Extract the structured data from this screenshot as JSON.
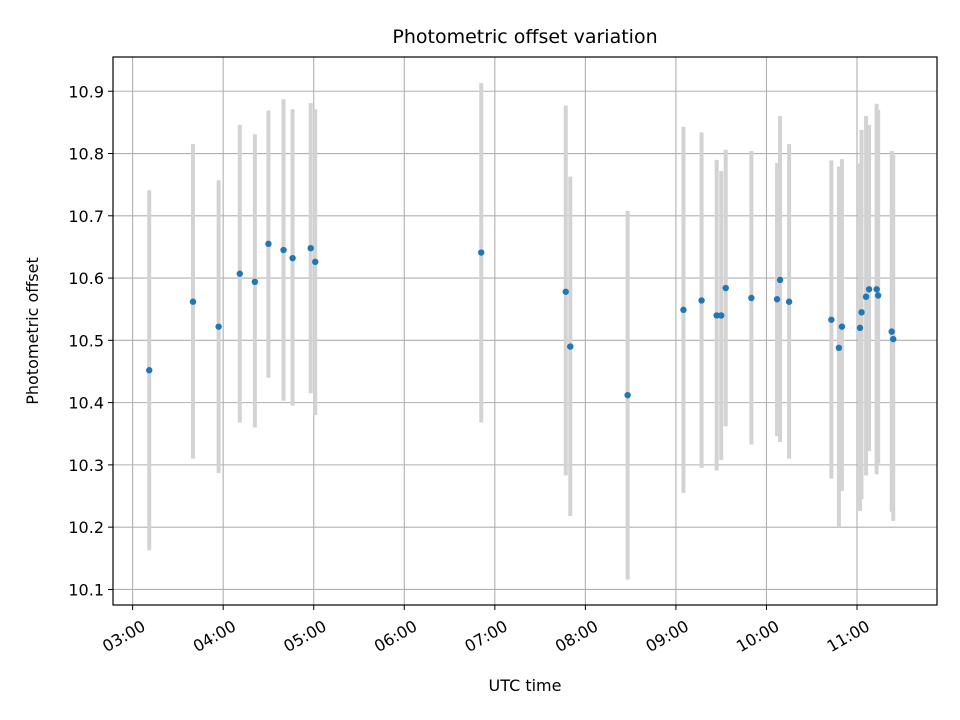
{
  "chart_data": {
    "type": "scatter",
    "title": "Photometric offset variation",
    "xlabel": "UTC time",
    "ylabel": "Photometric offset",
    "xlim": [
      "02:47",
      "11:53"
    ],
    "ylim": [
      10.075,
      10.955
    ],
    "x_ticks": [
      "03:00",
      "04:00",
      "05:00",
      "06:00",
      "07:00",
      "08:00",
      "09:00",
      "10:00",
      "11:00"
    ],
    "y_ticks": [
      10.1,
      10.2,
      10.3,
      10.4,
      10.5,
      10.6,
      10.7,
      10.8,
      10.9
    ],
    "grid": true,
    "colors": {
      "point": "#1f77b4",
      "errorbar": "#d3d3d3",
      "grid": "#b0b0b0"
    },
    "points": [
      {
        "t": "03:11",
        "y": 10.452,
        "lo": 10.163,
        "hi": 10.741
      },
      {
        "t": "03:40",
        "y": 10.562,
        "lo": 10.31,
        "hi": 10.815
      },
      {
        "t": "03:57",
        "y": 10.522,
        "lo": 10.287,
        "hi": 10.757
      },
      {
        "t": "04:11",
        "y": 10.607,
        "lo": 10.368,
        "hi": 10.846
      },
      {
        "t": "04:21",
        "y": 10.594,
        "lo": 10.36,
        "hi": 10.831
      },
      {
        "t": "04:30",
        "y": 10.655,
        "lo": 10.44,
        "hi": 10.869
      },
      {
        "t": "04:40",
        "y": 10.645,
        "lo": 10.403,
        "hi": 10.887
      },
      {
        "t": "04:46",
        "y": 10.632,
        "lo": 10.395,
        "hi": 10.871
      },
      {
        "t": "04:58",
        "y": 10.648,
        "lo": 10.415,
        "hi": 10.881
      },
      {
        "t": "05:01",
        "y": 10.626,
        "lo": 10.38,
        "hi": 10.871
      },
      {
        "t": "06:51",
        "y": 10.641,
        "lo": 10.368,
        "hi": 10.913
      },
      {
        "t": "07:47",
        "y": 10.578,
        "lo": 10.283,
        "hi": 10.877
      },
      {
        "t": "07:50",
        "y": 10.49,
        "lo": 10.218,
        "hi": 10.763
      },
      {
        "t": "08:28",
        "y": 10.412,
        "lo": 10.116,
        "hi": 10.708
      },
      {
        "t": "09:05",
        "y": 10.549,
        "lo": 10.255,
        "hi": 10.843
      },
      {
        "t": "09:17",
        "y": 10.564,
        "lo": 10.295,
        "hi": 10.834
      },
      {
        "t": "09:27",
        "y": 10.54,
        "lo": 10.291,
        "hi": 10.79
      },
      {
        "t": "09:30",
        "y": 10.54,
        "lo": 10.308,
        "hi": 10.772
      },
      {
        "t": "09:33",
        "y": 10.584,
        "lo": 10.362,
        "hi": 10.806
      },
      {
        "t": "09:50",
        "y": 10.568,
        "lo": 10.333,
        "hi": 10.804
      },
      {
        "t": "10:07",
        "y": 10.566,
        "lo": 10.346,
        "hi": 10.785
      },
      {
        "t": "10:09",
        "y": 10.597,
        "lo": 10.337,
        "hi": 10.86
      },
      {
        "t": "10:15",
        "y": 10.562,
        "lo": 10.31,
        "hi": 10.815
      },
      {
        "t": "10:43",
        "y": 10.533,
        "lo": 10.278,
        "hi": 10.789
      },
      {
        "t": "10:48",
        "y": 10.488,
        "lo": 10.2,
        "hi": 10.779
      },
      {
        "t": "10:50",
        "y": 10.522,
        "lo": 10.258,
        "hi": 10.791
      },
      {
        "t": "11:02",
        "y": 10.52,
        "lo": 10.226,
        "hi": 10.784
      },
      {
        "t": "11:03",
        "y": 10.545,
        "lo": 10.245,
        "hi": 10.838
      },
      {
        "t": "11:06",
        "y": 10.57,
        "lo": 10.283,
        "hi": 10.86
      },
      {
        "t": "11:08",
        "y": 10.582,
        "lo": 10.322,
        "hi": 10.846
      },
      {
        "t": "11:13",
        "y": 10.582,
        "lo": 10.285,
        "hi": 10.88
      },
      {
        "t": "11:14",
        "y": 10.572,
        "lo": 10.302,
        "hi": 10.87
      },
      {
        "t": "11:23",
        "y": 10.514,
        "lo": 10.225,
        "hi": 10.804
      },
      {
        "t": "11:24",
        "y": 10.502,
        "lo": 10.21,
        "hi": 10.798
      }
    ]
  }
}
